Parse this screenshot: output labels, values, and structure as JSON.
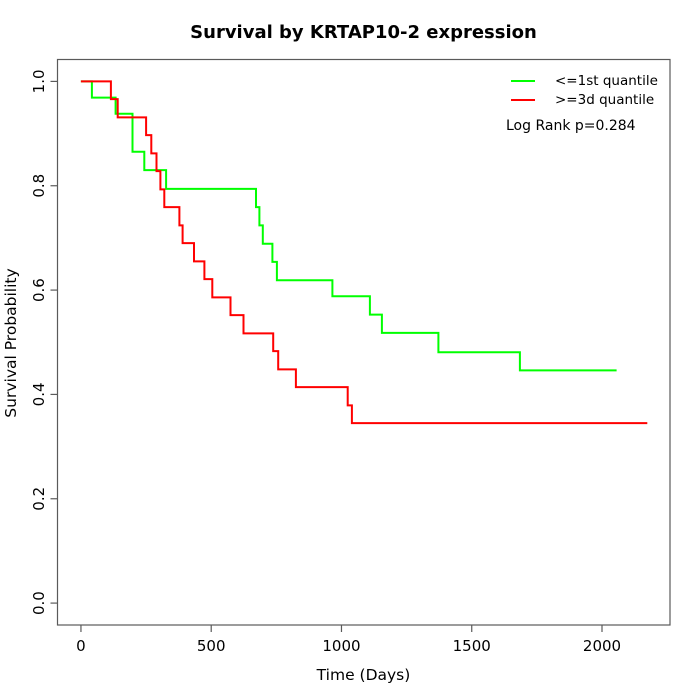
{
  "chart_data": {
    "type": "line",
    "subtype": "kaplan-meier-step",
    "title": "Survival by KRTAP10-2 expression",
    "xlabel": "Time (Days)",
    "ylabel": "Survival Probability",
    "xlim": [
      -90,
      2261
    ],
    "ylim": [
      -0.042,
      1.042
    ],
    "x_ticks": [
      0,
      500,
      1000,
      1500,
      2000
    ],
    "y_ticks": [
      0.0,
      0.2,
      0.4,
      0.6,
      0.8,
      1.0
    ],
    "grid": false,
    "legend_position": "top-right",
    "annotation": "Log Rank p=0.284",
    "axis_color": "#5a5a5a",
    "series": [
      {
        "name": "<=1st quantile",
        "color": "#00ff00",
        "start": [
          0,
          1.0
        ],
        "events": [
          [
            42,
            0.969
          ],
          [
            133,
            0.938
          ],
          [
            198,
            0.865
          ],
          [
            243,
            0.83
          ],
          [
            327,
            0.794
          ],
          [
            672,
            0.759
          ],
          [
            685,
            0.724
          ],
          [
            698,
            0.689
          ],
          [
            735,
            0.654
          ],
          [
            752,
            0.619
          ],
          [
            965,
            0.588
          ],
          [
            1109,
            0.553
          ],
          [
            1155,
            0.518
          ],
          [
            1372,
            0.481
          ],
          [
            1685,
            0.446
          ]
        ],
        "end_t": 2056
      },
      {
        "name": ">=3d quantile",
        "color": "#ff0000",
        "start": [
          0,
          1.0
        ],
        "events": [
          [
            115,
            0.966
          ],
          [
            141,
            0.931
          ],
          [
            250,
            0.897
          ],
          [
            270,
            0.862
          ],
          [
            290,
            0.828
          ],
          [
            305,
            0.793
          ],
          [
            320,
            0.759
          ],
          [
            378,
            0.724
          ],
          [
            390,
            0.69
          ],
          [
            434,
            0.655
          ],
          [
            474,
            0.621
          ],
          [
            504,
            0.586
          ],
          [
            574,
            0.552
          ],
          [
            624,
            0.517
          ],
          [
            738,
            0.483
          ],
          [
            757,
            0.448
          ],
          [
            825,
            0.414
          ],
          [
            1024,
            0.379
          ],
          [
            1040,
            0.345
          ]
        ],
        "end_t": 2174
      }
    ]
  }
}
